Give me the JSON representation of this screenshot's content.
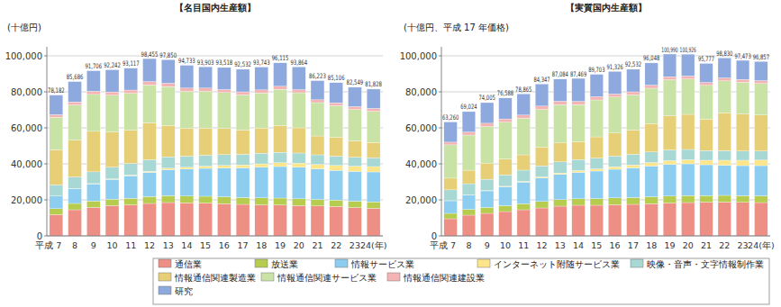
{
  "chart_data": [
    {
      "type": "bar",
      "title": "【名目国内生産額】",
      "ylabel": "(十億円)",
      "stacked": true,
      "grid": true,
      "legend": "bottom",
      "categories": [
        "平成 7",
        "8",
        "9",
        "10",
        "11",
        "12",
        "13",
        "14",
        "15",
        "16",
        "17",
        "18",
        "19",
        "20",
        "21",
        "22",
        "23",
        "24(年)"
      ],
      "ylim": [
        0,
        105000
      ],
      "yticks": [
        0,
        {
          "value": 20000,
          "label": "20,000"
        },
        {
          "value": 40000,
          "label": "40,000"
        },
        {
          "value": 60000,
          "label": "60,000"
        },
        {
          "value": 80000,
          "label": "80,000"
        },
        {
          "value": 100000,
          "label": "100,000"
        }
      ],
      "series": [
        {
          "name": "通信業",
          "color": "#ee8f86",
          "values": [
            11800,
            14500,
            15800,
            16800,
            17200,
            18000,
            18500,
            18400,
            18200,
            17900,
            17500,
            17200,
            17100,
            16800,
            16600,
            16300,
            15700,
            15300
          ]
        },
        {
          "name": "放送業",
          "color": "#b5cc4e",
          "values": [
            3300,
            3500,
            3600,
            3600,
            3700,
            3800,
            3800,
            3700,
            3800,
            3800,
            3800,
            3900,
            3900,
            3800,
            3600,
            3600,
            3600,
            3600
          ]
        },
        {
          "name": "情報サービス業",
          "color": "#8ccdf0",
          "values": [
            7000,
            8200,
            9500,
            11000,
            12500,
            13500,
            14500,
            15000,
            15500,
            16000,
            16500,
            17000,
            17500,
            17500,
            17000,
            16500,
            16500,
            16600
          ]
        },
        {
          "name": "インターネット附随サービス業",
          "color": "#fde58a",
          "values": [
            50,
            80,
            150,
            250,
            400,
            600,
            800,
            1000,
            1200,
            1400,
            1600,
            1900,
            2100,
            2300,
            2500,
            2700,
            2900,
            3000
          ]
        },
        {
          "name": "映像・音声・文字情報制作業",
          "color": "#a8d8d4",
          "values": [
            6200,
            6400,
            6500,
            6500,
            6400,
            6400,
            6300,
            6200,
            6100,
            6000,
            5900,
            5900,
            5800,
            5600,
            5300,
            5200,
            5000,
            4900
          ]
        },
        {
          "name": "情報通信関連製造業",
          "color": "#e7cf78",
          "values": [
            19500,
            20500,
            22500,
            19500,
            18500,
            20500,
            17500,
            15500,
            15000,
            14500,
            13500,
            14000,
            15000,
            14000,
            10500,
            10500,
            9000,
            8500
          ]
        },
        {
          "name": "情報通信関連サービス業",
          "color": "#c9e3a6",
          "values": [
            18000,
            19500,
            20500,
            20500,
            20500,
            21000,
            21500,
            20500,
            20500,
            20000,
            19500,
            19500,
            20000,
            19500,
            18500,
            17500,
            17500,
            17300
          ]
        },
        {
          "name": "情報通信関連建設業",
          "color": "#f4b4b4",
          "values": [
            1500,
            1700,
            1800,
            1800,
            1800,
            1900,
            1900,
            1800,
            1800,
            1700,
            1700,
            1700,
            1700,
            1700,
            1600,
            1600,
            1600,
            1600
          ]
        },
        {
          "name": "研究",
          "color": "#8ea9dd",
          "values": [
            10832,
            11306,
            11356,
            12292,
            12117,
            12755,
            13050,
            12633,
            11803,
            12218,
            12532,
            12643,
            13015,
            12664,
            10623,
            11206,
            10749,
            10728
          ]
        }
      ],
      "totals": [
        78182,
        85686,
        91706,
        92242,
        93117,
        98455,
        97850,
        94733,
        93903,
        93518,
        92532,
        93743,
        96115,
        93864,
        86223,
        85106,
        82549,
        81828
      ],
      "total_labels": [
        "78,182",
        "85,686",
        "91,706",
        "92,242",
        "93,117",
        "98,455",
        "97,850",
        "94,733",
        "93,903",
        "93,518",
        "92,532",
        "93,743",
        "96,115",
        "93,864",
        "86,223",
        "85,106",
        "82,549",
        "81,828"
      ]
    },
    {
      "type": "bar",
      "title": "【実質国内生産額】",
      "ylabel": "(十億円、平成 17 年価格)",
      "stacked": true,
      "grid": true,
      "categories": [
        "平成 7",
        "8",
        "9",
        "10",
        "11",
        "12",
        "13",
        "14",
        "15",
        "16",
        "17",
        "18",
        "19",
        "20",
        "21",
        "22",
        "23",
        "24(年)"
      ],
      "ylim": [
        0,
        105000
      ],
      "yticks": [
        0,
        {
          "value": 20000,
          "label": "20,000"
        },
        {
          "value": 40000,
          "label": "40,000"
        },
        {
          "value": 60000,
          "label": "60,000"
        },
        {
          "value": 80000,
          "label": "80,000"
        },
        {
          "value": 100000,
          "label": "100,000"
        }
      ],
      "series": [
        {
          "name": "通信業",
          "color": "#ee8f86",
          "values": [
            9500,
            11500,
            12500,
            13500,
            14500,
            15500,
            16500,
            17000,
            17000,
            17300,
            17500,
            17800,
            18200,
            18500,
            18700,
            18800,
            18600,
            18500
          ]
        },
        {
          "name": "放送業",
          "color": "#b5cc4e",
          "values": [
            3000,
            3200,
            3300,
            3300,
            3400,
            3600,
            3600,
            3600,
            3700,
            3800,
            3800,
            3900,
            3900,
            3900,
            3700,
            3700,
            3700,
            3700
          ]
        },
        {
          "name": "情報サービス業",
          "color": "#8ccdf0",
          "values": [
            7000,
            8000,
            9200,
            10500,
            12000,
            13000,
            14000,
            14700,
            15300,
            15900,
            16500,
            17100,
            17600,
            17600,
            17100,
            16700,
            16700,
            16800
          ]
        },
        {
          "name": "インターネット附随サービス業",
          "color": "#fde58a",
          "values": [
            50,
            80,
            150,
            250,
            400,
            600,
            800,
            1000,
            1200,
            1400,
            1600,
            1900,
            2100,
            2300,
            2500,
            2800,
            3000,
            3100
          ]
        },
        {
          "name": "映像・音声・文字情報制作業",
          "color": "#a8d8d4",
          "values": [
            6000,
            6200,
            6300,
            6300,
            6200,
            6200,
            6200,
            6100,
            6000,
            6000,
            5900,
            5900,
            5900,
            5700,
            5400,
            5300,
            5100,
            5000
          ]
        },
        {
          "name": "情報通信関連製造業",
          "color": "#e7cf78",
          "values": [
            6500,
            7500,
            9000,
            8800,
            8500,
            10500,
            10500,
            10000,
            11800,
            12700,
            13500,
            15800,
            19000,
            19500,
            17500,
            21000,
            20500,
            20000
          ]
        },
        {
          "name": "情報通信関連サービス業",
          "color": "#c9e3a6",
          "values": [
            18500,
            19500,
            20300,
            20500,
            20300,
            20800,
            21300,
            20500,
            20500,
            20000,
            19500,
            19600,
            20000,
            19600,
            18700,
            17800,
            17700,
            17500
          ]
        },
        {
          "name": "情報通信関連建設業",
          "color": "#f4b4b4",
          "values": [
            1500,
            1700,
            1800,
            1800,
            1800,
            1900,
            1900,
            1800,
            1800,
            1700,
            1700,
            1700,
            1700,
            1700,
            1600,
            1600,
            1600,
            1600
          ]
        },
        {
          "name": "研究",
          "color": "#8ea9dd",
          "values": [
            11210,
            11344,
            11455,
            11638,
            11765,
            12247,
            12284,
            12769,
            12403,
            12526,
            12532,
            12348,
            12590,
            12126,
            10577,
            11130,
            10573,
            10657
          ]
        }
      ],
      "totals": [
        63260,
        69024,
        74005,
        76588,
        78865,
        84347,
        87084,
        87469,
        89703,
        91326,
        92532,
        96048,
        100990,
        100926,
        95777,
        98830,
        97473,
        96857
      ],
      "total_labels": [
        "63,260",
        "69,024",
        "74,005",
        "76,588",
        "78,865",
        "84,347",
        "87,084",
        "87,469",
        "89,703",
        "91,326",
        "92,532",
        "96,048",
        "100,990",
        "100,926",
        "95,777",
        "98,830",
        "97,473",
        "96,857"
      ]
    }
  ]
}
